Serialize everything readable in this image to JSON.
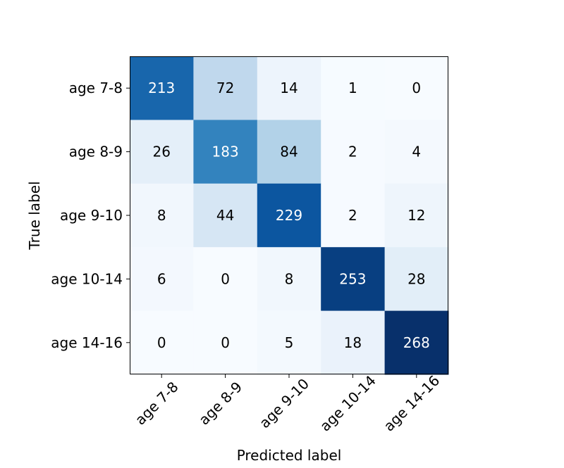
{
  "chart_data": {
    "type": "heatmap",
    "title": "",
    "xlabel": "Predicted label",
    "ylabel": "True label",
    "x_categories": [
      "age 7-8",
      "age 8-9",
      "age 9-10",
      "age 10-14",
      "age 14-16"
    ],
    "y_categories": [
      "age 7-8",
      "age 8-9",
      "age 9-10",
      "age 10-14",
      "age 14-16"
    ],
    "values": [
      [
        213,
        72,
        14,
        1,
        0
      ],
      [
        26,
        183,
        84,
        2,
        4
      ],
      [
        8,
        44,
        229,
        2,
        12
      ],
      [
        6,
        0,
        8,
        253,
        28
      ],
      [
        0,
        0,
        5,
        18,
        268
      ]
    ],
    "colormap": [
      "#f7fbff",
      "#deebf7",
      "#c6dbef",
      "#9ecae1",
      "#6baed6",
      "#4292c6",
      "#2171b5",
      "#08519c",
      "#08306b"
    ],
    "grid": false,
    "legend": "none"
  }
}
